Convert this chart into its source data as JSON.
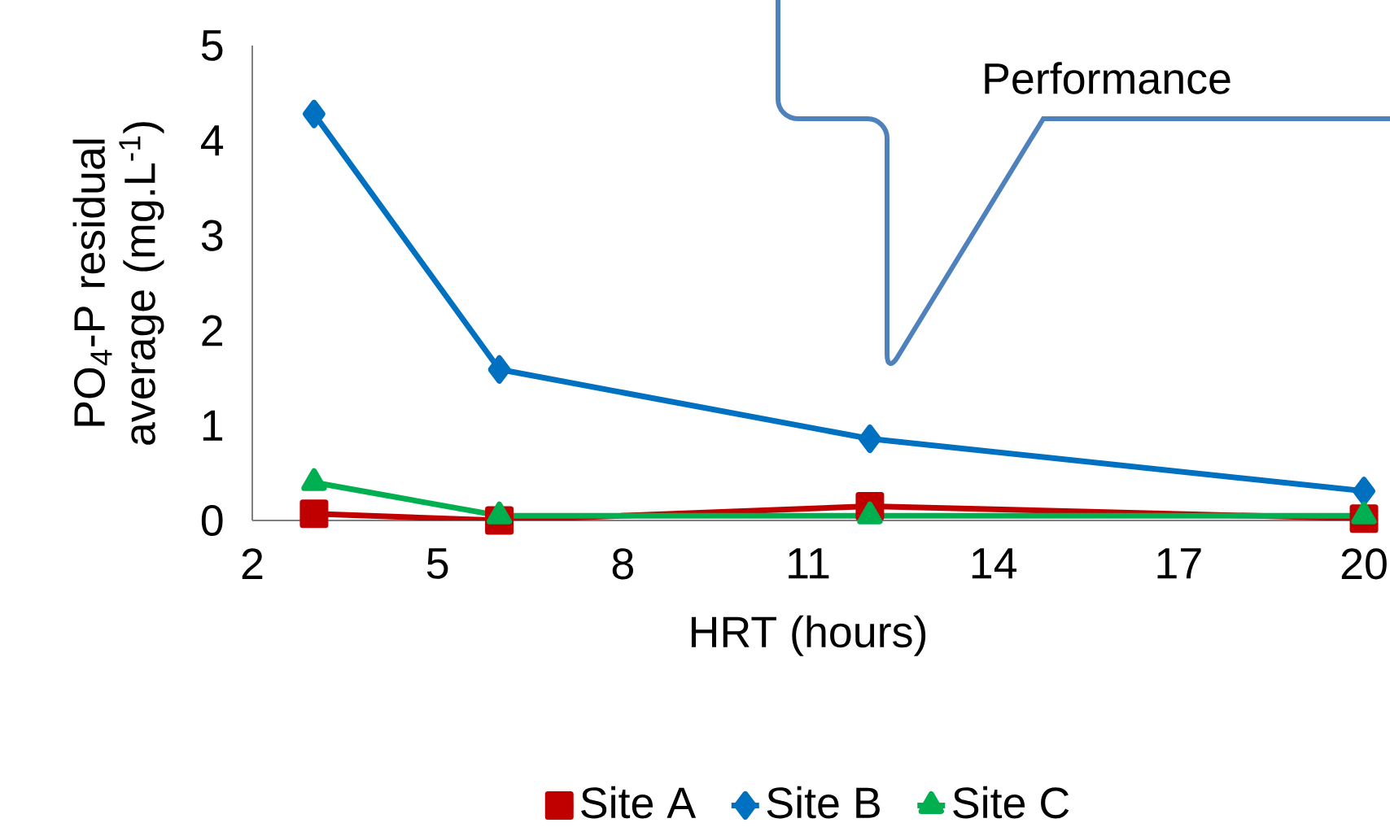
{
  "chart_data": {
    "type": "line",
    "xlabel": "HRT (hours)",
    "ylabel": "PO$_{4}$-P residual average (mg.L$^{-1}$)",
    "x": [
      3,
      6,
      12,
      20
    ],
    "xlim": [
      2,
      20
    ],
    "xticks": [
      2,
      5,
      8,
      11,
      14,
      17,
      20
    ],
    "ylim": [
      0,
      5
    ],
    "yticks": [
      0,
      1,
      2,
      3,
      4,
      5
    ],
    "grid": false,
    "legend": "bottom",
    "line_style": "solid",
    "annotations": [
      "Performance"
    ],
    "series": [
      {
        "name": "Site A",
        "color": "#c00000",
        "marker": "square",
        "values": [
          0.07,
          0.0,
          0.15,
          0.02
        ]
      },
      {
        "name": "Site B",
        "color": "#0070c0",
        "marker": "diamond",
        "values": [
          4.28,
          1.59,
          0.86,
          0.31
        ]
      },
      {
        "name": "Site C",
        "color": "#00b050",
        "marker": "triangle",
        "values": [
          0.4,
          0.05,
          0.05,
          0.05
        ]
      }
    ]
  }
}
